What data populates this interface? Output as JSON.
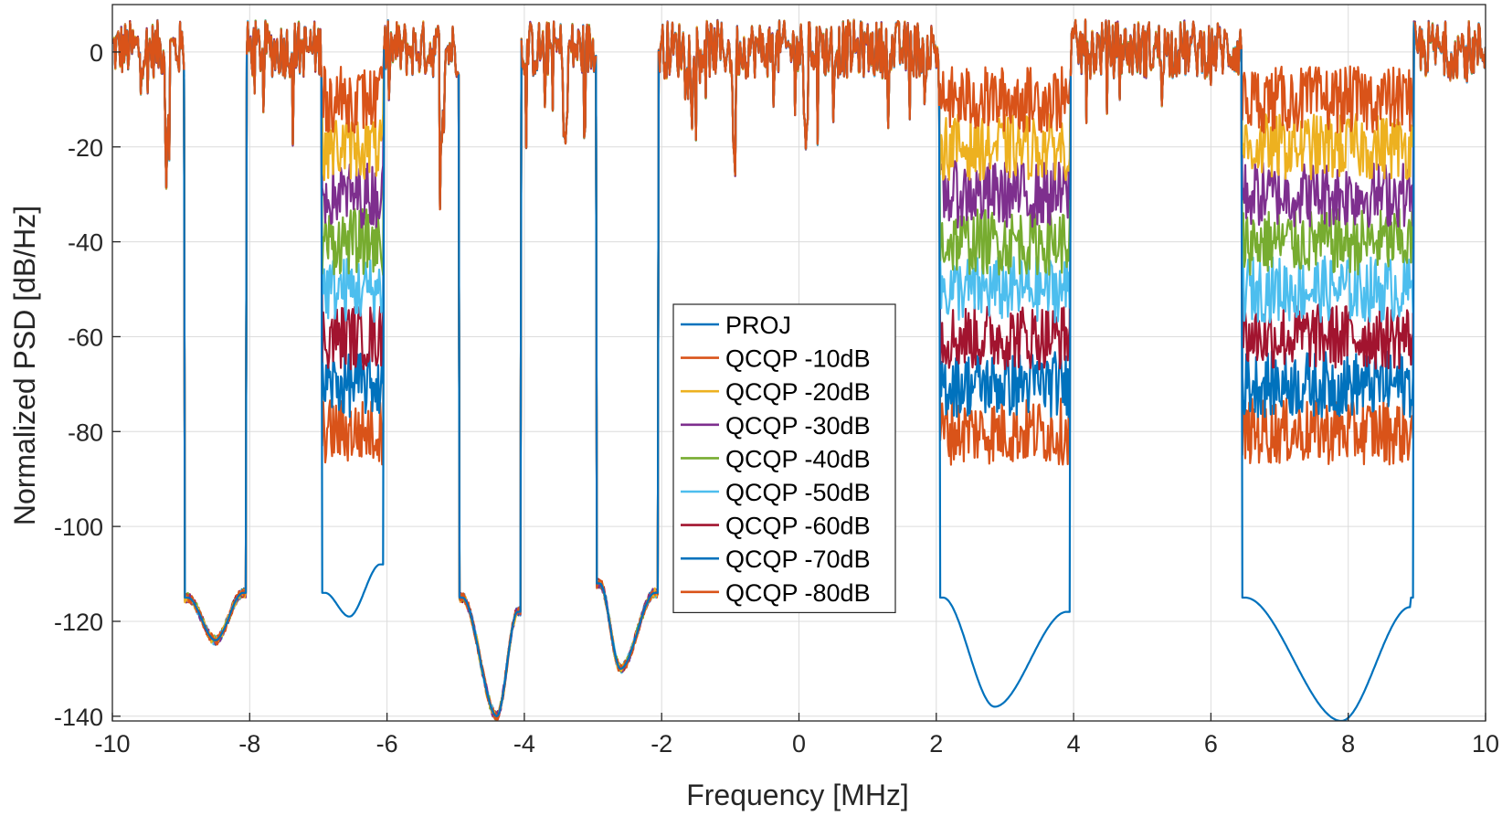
{
  "chart_data": {
    "type": "line",
    "title": "",
    "xlabel": "Frequency [MHz]",
    "ylabel": "Normalized PSD [dB/Hz]",
    "xlim": [
      -10,
      10
    ],
    "ylim": [
      -141,
      10
    ],
    "grid": true,
    "legend_position": "center",
    "xticks": [
      -10,
      -8,
      -6,
      -4,
      -2,
      0,
      2,
      4,
      6,
      8,
      10
    ],
    "xtick_labels": [
      "-10",
      "-8",
      "-6",
      "-4",
      "-2",
      "0",
      "2",
      "4",
      "6",
      "8",
      "10"
    ],
    "yticks": [
      0,
      -20,
      -40,
      -60,
      -80,
      -100,
      -120,
      -140
    ],
    "ytick_labels": [
      "0",
      "-20",
      "-40",
      "-60",
      "-80",
      "-100",
      "-120",
      "-140"
    ],
    "background_band": {
      "description": "occupied (unprotected) spectrum level of QCQP -10dB curve",
      "mean_db": 0,
      "ripple_db": 6,
      "dips": [
        -9.2,
        -8.9,
        -8.2,
        -5.2,
        -4.6,
        -3.4,
        -2.5,
        -0.95,
        0.1
      ]
    },
    "notch_bands": [
      {
        "f_start": -8.95,
        "f_end": -8.05
      },
      {
        "f_start": -6.95,
        "f_end": -6.05
      },
      {
        "f_start": -4.95,
        "f_end": -4.05
      },
      {
        "f_start": -2.95,
        "f_end": -2.05
      },
      {
        "f_start": 2.05,
        "f_end": 3.95
      },
      {
        "f_start": 6.45,
        "f_end": 8.95
      }
    ],
    "series": [
      {
        "name": "PROJ",
        "color": "#0072BD",
        "notch_floor_db": [
          {
            "f": -8.9,
            "v": -115
          },
          {
            "f": -8.5,
            "v": -124
          },
          {
            "f": -8.1,
            "v": -114
          },
          {
            "f": -6.9,
            "v": -114
          },
          {
            "f": -6.55,
            "v": -119
          },
          {
            "f": -6.1,
            "v": -108
          },
          {
            "f": -4.9,
            "v": -115
          },
          {
            "f": -4.4,
            "v": -140
          },
          {
            "f": -4.1,
            "v": -118
          },
          {
            "f": -2.9,
            "v": -112
          },
          {
            "f": -2.6,
            "v": -130
          },
          {
            "f": -2.1,
            "v": -114
          },
          {
            "f": 2.1,
            "v": -115
          },
          {
            "f": 2.85,
            "v": -138
          },
          {
            "f": 3.9,
            "v": -118
          },
          {
            "f": 6.5,
            "v": -115
          },
          {
            "f": 7.9,
            "v": -141
          },
          {
            "f": 8.9,
            "v": -117
          }
        ]
      },
      {
        "name": "QCQP -10dB",
        "color": "#D95319",
        "notch_level_db": -10,
        "bands": [
          1,
          4,
          5
        ]
      },
      {
        "name": "QCQP -20dB",
        "color": "#EDB120",
        "notch_level_db": -20,
        "bands": [
          1,
          4,
          5
        ]
      },
      {
        "name": "QCQP -30dB",
        "color": "#7E2F8E",
        "notch_level_db": -30,
        "bands": [
          1,
          4,
          5
        ]
      },
      {
        "name": "QCQP -40dB",
        "color": "#77AC30",
        "notch_level_db": -40,
        "bands": [
          1,
          4,
          5
        ]
      },
      {
        "name": "QCQP -50dB",
        "color": "#4DBEEE",
        "notch_level_db": -50,
        "bands": [
          1,
          4,
          5
        ]
      },
      {
        "name": "QCQP -60dB",
        "color": "#A2142F",
        "notch_level_db": -60,
        "bands": [
          1,
          4,
          5
        ]
      },
      {
        "name": "QCQP -70dB",
        "color": "#0072BD",
        "notch_level_db": -70,
        "bands": [
          1,
          4,
          5
        ]
      },
      {
        "name": "QCQP -80dB",
        "color": "#D95319",
        "notch_level_db": -80,
        "bands": [
          1,
          4,
          5
        ]
      }
    ]
  }
}
